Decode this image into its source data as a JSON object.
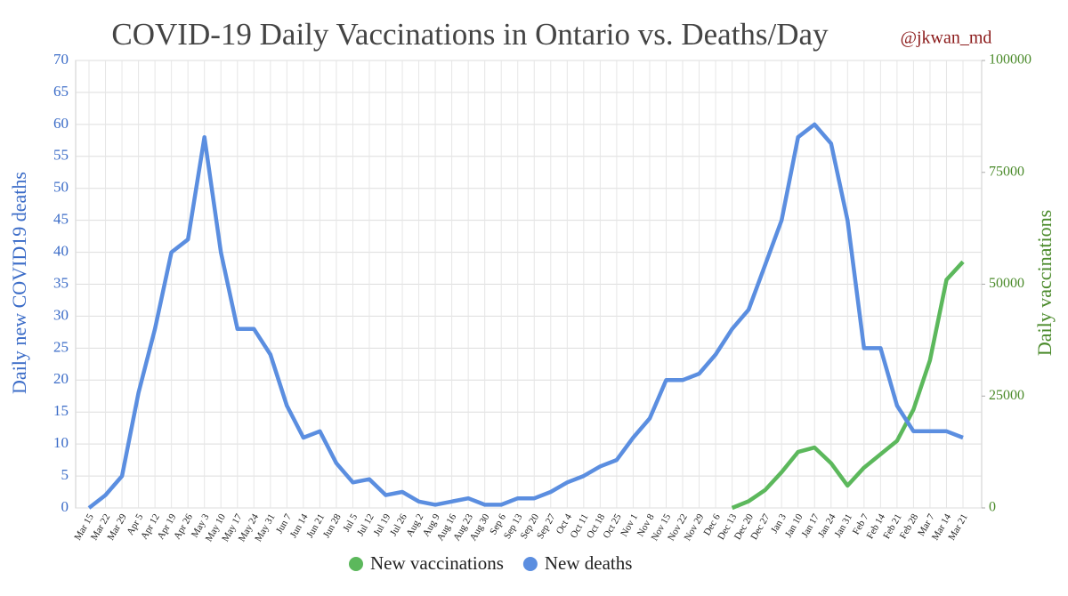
{
  "chart_data": {
    "type": "line",
    "title": "COVID-19 Daily Vaccinations in Ontario vs. Deaths/Day",
    "annotation": "@jkwan_md",
    "y_label": "Daily new COVID19 deaths",
    "y2_label": "Daily vaccinations",
    "categories": [
      "Mar 15",
      "Mar 22",
      "Mar 29",
      "Apr 5",
      "Apr 12",
      "Apr 19",
      "Apr 26",
      "May 3",
      "May 10",
      "May 17",
      "May 24",
      "May 31",
      "Jun 7",
      "Jun 14",
      "Jun 21",
      "Jun 28",
      "Jul 5",
      "Jul 12",
      "Jul 19",
      "Jul 26",
      "Aug 2",
      "Aug 9",
      "Aug 16",
      "Aug 23",
      "Aug 30",
      "Sep 6",
      "Sep 13",
      "Sep 20",
      "Sep 27",
      "Oct 4",
      "Oct 11",
      "Oct 18",
      "Oct 25",
      "Nov 1",
      "Nov 8",
      "Nov 15",
      "Nov 22",
      "Nov 29",
      "Dec 6",
      "Dec 13",
      "Dec 20",
      "Dec 27",
      "Jan 3",
      "Jan 10",
      "Jan 17",
      "Jan 24",
      "Jan 31",
      "Feb 7",
      "Feb 14",
      "Feb 21",
      "Feb 28",
      "Mar 7",
      "Mar 14",
      "Mar 21"
    ],
    "series": [
      {
        "name": "New vaccinations",
        "color": "#5cb85c",
        "axis": "y2",
        "values": [
          null,
          null,
          null,
          null,
          null,
          null,
          null,
          null,
          null,
          null,
          null,
          null,
          null,
          null,
          null,
          null,
          null,
          null,
          null,
          null,
          null,
          null,
          null,
          null,
          null,
          null,
          null,
          null,
          null,
          null,
          null,
          null,
          null,
          null,
          null,
          null,
          null,
          null,
          null,
          0,
          1500,
          4000,
          8000,
          12500,
          13500,
          10000,
          5000,
          9000,
          12000,
          15000,
          22000,
          33000,
          51000,
          55000
        ]
      },
      {
        "name": "New deaths",
        "color": "#5b8ee0",
        "values": [
          0,
          2,
          5,
          18,
          28,
          40,
          42,
          58,
          40,
          28,
          28,
          24,
          16,
          11,
          12,
          7,
          4,
          4.5,
          2,
          2.5,
          1,
          0.5,
          1,
          1.5,
          0.5,
          0.5,
          1.5,
          1.5,
          2.5,
          4,
          5,
          6.5,
          7.5,
          11,
          14,
          20,
          20,
          21,
          24,
          28,
          31,
          38,
          45,
          58,
          60,
          57,
          45,
          25,
          25,
          16,
          12,
          12,
          12,
          11
        ]
      }
    ],
    "ylim": [
      0,
      70
    ],
    "yticks": [
      0,
      5,
      10,
      15,
      20,
      25,
      30,
      35,
      40,
      45,
      50,
      55,
      60,
      65,
      70
    ],
    "y2lim": [
      0,
      100000
    ],
    "y2ticks": [
      0,
      25000,
      50000,
      75000,
      100000
    ],
    "grid": true,
    "legend": "bottom"
  }
}
